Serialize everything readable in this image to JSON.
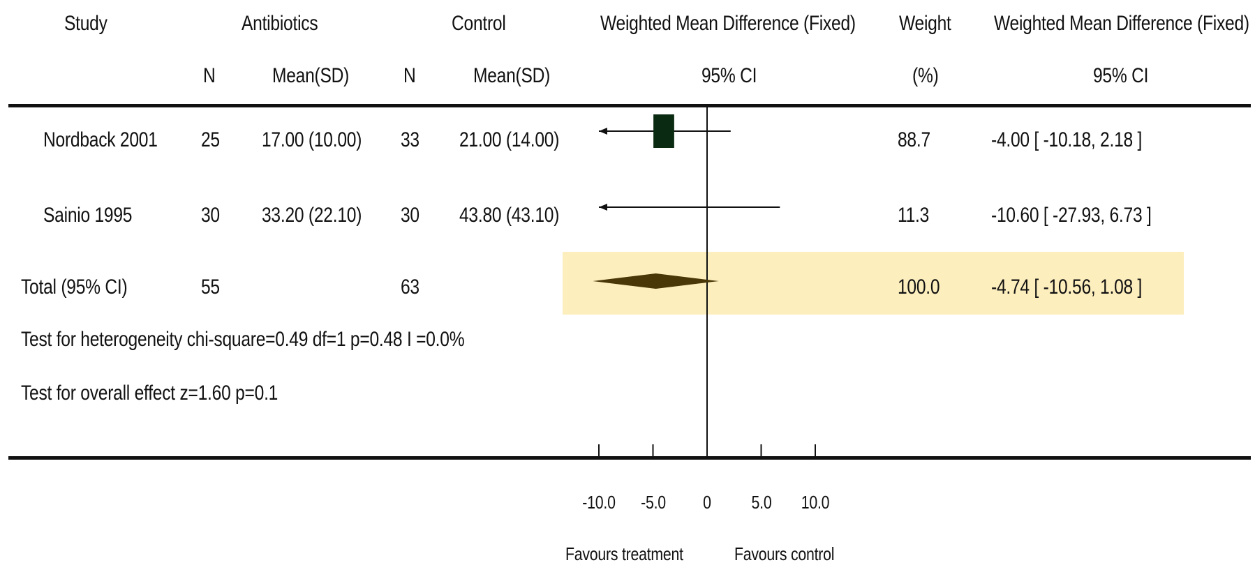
{
  "headers": {
    "study": "Study",
    "group_a": "Antibiotics",
    "group_b": "Control",
    "effect": "Weighted Mean Difference (Fixed)",
    "weight": "Weight",
    "effect2": "Weighted Mean Difference (Fixed)",
    "n_a": "N",
    "mean_a": "Mean(SD)",
    "n_b": "N",
    "mean_b": "Mean(SD)",
    "ci": "95% CI",
    "weight_unit": "(%)",
    "ci2": "95% CI"
  },
  "rows": [
    {
      "study": "Nordback 2001",
      "n_a": "25",
      "mean_a": "17.00 (10.00)",
      "n_b": "33",
      "mean_b": "21.00 (14.00)",
      "weight": "88.7",
      "ci_text": "-4.00 [ -10.18, 2.18 ]"
    },
    {
      "study": "Sainio 1995",
      "n_a": "30",
      "mean_a": "33.20 (22.10)",
      "n_b": "30",
      "mean_b": "43.80 (43.10)",
      "weight": "11.3",
      "ci_text": "-10.60 [ -27.93, 6.73 ]"
    }
  ],
  "total": {
    "label": "Total (95% CI)",
    "n_a": "55",
    "n_b": "63",
    "weight": "100.0",
    "ci_text": "-4.74 [ -10.56, 1.08 ]"
  },
  "footnotes": {
    "heterogeneity": "Test for heterogeneity chi-square=0.49 df=1 p=0.48 I =0.0%",
    "overall": "Test for overall effect z=1.60   p=0.1"
  },
  "axis": {
    "ticks": [
      "-10.0",
      "-5.0",
      "0",
      "5.0",
      "10.0"
    ],
    "favours_left": "Favours treatment",
    "favours_right": "Favours control"
  },
  "colors": {
    "study_marker": "#0b2a12",
    "diamond": "#4a3708",
    "highlight": "#fdeebe"
  },
  "chart_data": {
    "type": "forest",
    "xlim": [
      -10,
      10
    ],
    "ticks": [
      -10,
      -5,
      0,
      5,
      10
    ],
    "studies": [
      {
        "name": "Nordback 2001",
        "estimate": -4.0,
        "lower": -10.18,
        "upper": 2.18,
        "weight": 88.7
      },
      {
        "name": "Sainio 1995",
        "estimate": -10.6,
        "lower": -27.93,
        "upper": 6.73,
        "weight": 11.3
      }
    ],
    "total": {
      "name": "Total (95% CI)",
      "estimate": -4.74,
      "lower": -10.56,
      "upper": 1.08,
      "weight": 100.0
    }
  }
}
